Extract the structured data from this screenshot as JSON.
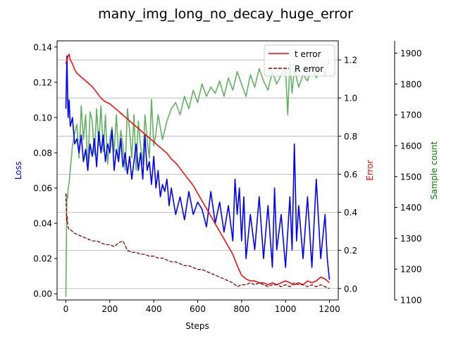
{
  "chart_data": {
    "type": "line",
    "title": "many_img_long_no_decay_huge_error",
    "xlabel": "Steps",
    "xlim": [
      -40,
      1240
    ],
    "xticks": [
      0,
      200,
      400,
      600,
      800,
      1000,
      1200
    ],
    "axes": [
      {
        "id": "loss",
        "ylabel": "Loss",
        "color": "#0000ff",
        "side": "left",
        "ylim": [
          -0.0035,
          0.1435
        ],
        "ticks": [
          0.0,
          0.02,
          0.04,
          0.06,
          0.08,
          0.1,
          0.12,
          0.14
        ]
      },
      {
        "id": "error",
        "ylabel": "Error",
        "color": "#ff0000",
        "side": "right",
        "ylim": [
          -0.06,
          1.3
        ],
        "grid": true,
        "ticks": [
          0.0,
          0.2,
          0.4,
          0.6,
          0.8,
          1.0,
          1.2
        ]
      },
      {
        "id": "samples",
        "ylabel": "Sample count",
        "color": "#008000",
        "side": "right-outer",
        "ylim": [
          1100,
          1940
        ],
        "ticks": [
          1100,
          1200,
          1300,
          1400,
          1500,
          1600,
          1700,
          1800,
          1900
        ]
      }
    ],
    "legend": {
      "placement": "top-right",
      "entries": [
        {
          "name": "t error",
          "color": "#ff0000",
          "style": "solid"
        },
        {
          "name": "R error",
          "color": "#8b0000",
          "style": "dashed"
        }
      ]
    },
    "series": [
      {
        "name": "Loss",
        "axis": "loss",
        "color": "#0000ff",
        "width": 1.6,
        "x": [
          0,
          5,
          10,
          15,
          20,
          30,
          40,
          50,
          60,
          70,
          80,
          90,
          100,
          110,
          120,
          130,
          140,
          150,
          160,
          170,
          180,
          190,
          200,
          210,
          220,
          230,
          240,
          250,
          260,
          270,
          280,
          290,
          300,
          310,
          320,
          330,
          340,
          350,
          360,
          370,
          380,
          390,
          400,
          410,
          420,
          430,
          440,
          450,
          460,
          470,
          480,
          500,
          520,
          540,
          560,
          580,
          600,
          620,
          640,
          660,
          680,
          700,
          720,
          740,
          760,
          770,
          780,
          790,
          800,
          810,
          820,
          840,
          860,
          880,
          900,
          920,
          940,
          950,
          960,
          980,
          1000,
          1020,
          1030,
          1040,
          1045,
          1050,
          1060,
          1080,
          1100,
          1120,
          1140,
          1160,
          1180,
          1190,
          1200
        ],
        "y": [
          0.105,
          0.135,
          0.1,
          0.11,
          0.095,
          0.1,
          0.085,
          0.088,
          0.08,
          0.09,
          0.075,
          0.082,
          0.07,
          0.085,
          0.078,
          0.088,
          0.072,
          0.092,
          0.08,
          0.09,
          0.075,
          0.085,
          0.08,
          0.093,
          0.07,
          0.082,
          0.075,
          0.088,
          0.072,
          0.08,
          0.068,
          0.078,
          0.065,
          0.075,
          0.085,
          0.07,
          0.08,
          0.065,
          0.09,
          0.07,
          0.075,
          0.062,
          0.078,
          0.06,
          0.07,
          0.055,
          0.062,
          0.058,
          0.065,
          0.05,
          0.06,
          0.045,
          0.055,
          0.042,
          0.058,
          0.045,
          0.052,
          0.048,
          0.038,
          0.058,
          0.04,
          0.052,
          0.035,
          0.05,
          0.03,
          0.065,
          0.045,
          0.06,
          0.03,
          0.055,
          0.02,
          0.045,
          0.025,
          0.055,
          0.02,
          0.05,
          0.015,
          0.06,
          0.025,
          0.045,
          0.015,
          0.055,
          0.025,
          0.085,
          0.06,
          0.03,
          0.05,
          0.02,
          0.055,
          0.015,
          0.065,
          0.02,
          0.045,
          0.02,
          0.008
        ]
      },
      {
        "name": "t error",
        "axis": "error",
        "color": "#ff0000",
        "width": 1.5,
        "dash": "",
        "x": [
          0,
          5,
          10,
          15,
          20,
          30,
          40,
          50,
          60,
          80,
          100,
          120,
          140,
          160,
          180,
          200,
          220,
          240,
          260,
          280,
          300,
          320,
          340,
          360,
          380,
          400,
          420,
          440,
          460,
          480,
          500,
          520,
          540,
          560,
          580,
          600,
          620,
          640,
          660,
          680,
          700,
          720,
          740,
          760,
          780,
          800,
          820,
          840,
          860,
          880,
          900,
          920,
          940,
          960,
          980,
          1000,
          1020,
          1040,
          1060,
          1080,
          1100,
          1120,
          1140,
          1160,
          1180,
          1200
        ],
        "y": [
          1.18,
          1.2,
          1.22,
          1.23,
          1.2,
          1.18,
          1.15,
          1.13,
          1.12,
          1.1,
          1.08,
          1.06,
          1.03,
          1.0,
          0.98,
          0.97,
          0.95,
          0.93,
          0.91,
          0.89,
          0.87,
          0.85,
          0.83,
          0.81,
          0.79,
          0.77,
          0.75,
          0.73,
          0.71,
          0.68,
          0.66,
          0.63,
          0.6,
          0.57,
          0.54,
          0.5,
          0.46,
          0.42,
          0.38,
          0.34,
          0.3,
          0.26,
          0.22,
          0.18,
          0.12,
          0.07,
          0.05,
          0.04,
          0.04,
          0.03,
          0.03,
          0.02,
          0.03,
          0.02,
          0.03,
          0.04,
          0.03,
          0.02,
          0.03,
          0.02,
          0.04,
          0.03,
          0.04,
          0.06,
          0.05,
          0.03
        ]
      },
      {
        "name": "R error",
        "axis": "error",
        "color": "#8b0000",
        "width": 1.3,
        "dash": "5,2",
        "x": [
          0,
          2,
          4,
          6,
          8,
          10,
          15,
          20,
          30,
          40,
          60,
          80,
          100,
          120,
          140,
          160,
          180,
          200,
          220,
          240,
          260,
          280,
          300,
          320,
          340,
          360,
          380,
          400,
          420,
          440,
          460,
          480,
          500,
          520,
          540,
          560,
          580,
          600,
          620,
          640,
          660,
          680,
          700,
          720,
          740,
          760,
          780,
          800,
          820,
          840,
          860,
          880,
          900,
          920,
          940,
          960,
          980,
          1000,
          1020,
          1040,
          1060,
          1080,
          1100,
          1120,
          1140,
          1160,
          1180,
          1200
        ],
        "y": [
          0.5,
          0.4,
          0.35,
          0.38,
          0.34,
          0.32,
          0.31,
          0.31,
          0.3,
          0.29,
          0.28,
          0.27,
          0.26,
          0.25,
          0.25,
          0.24,
          0.23,
          0.23,
          0.22,
          0.24,
          0.25,
          0.2,
          0.19,
          0.19,
          0.18,
          0.18,
          0.17,
          0.17,
          0.16,
          0.16,
          0.15,
          0.14,
          0.14,
          0.13,
          0.12,
          0.12,
          0.11,
          0.1,
          0.1,
          0.09,
          0.08,
          0.07,
          0.06,
          0.05,
          0.04,
          0.03,
          0.01,
          0.02,
          0.02,
          0.03,
          0.02,
          0.03,
          0.02,
          0.01,
          0.02,
          0.02,
          0.01,
          0.02,
          0.01,
          0.03,
          0.02,
          0.02,
          0.01,
          0.02,
          0.01,
          0.02,
          0.01,
          0.0
        ]
      },
      {
        "name": "Sample count",
        "axis": "samples",
        "color": "#62b262",
        "width": 1.6,
        "x": [
          0,
          3,
          5,
          8,
          10,
          15,
          20,
          30,
          40,
          50,
          60,
          70,
          80,
          90,
          100,
          110,
          120,
          130,
          140,
          150,
          160,
          170,
          180,
          190,
          200,
          210,
          220,
          230,
          240,
          250,
          260,
          270,
          280,
          290,
          300,
          310,
          320,
          330,
          340,
          350,
          360,
          370,
          380,
          390,
          400,
          410,
          420,
          440,
          460,
          480,
          500,
          520,
          540,
          560,
          580,
          600,
          620,
          640,
          660,
          680,
          700,
          720,
          740,
          760,
          780,
          800,
          820,
          840,
          860,
          880,
          900,
          920,
          940,
          960,
          980,
          1000,
          1010,
          1020,
          1030,
          1040,
          1050,
          1060,
          1080,
          1100,
          1120,
          1140,
          1160,
          1180,
          1200
        ],
        "y": [
          1110,
          1350,
          1440,
          1430,
          1460,
          1480,
          1520,
          1600,
          1640,
          1670,
          1560,
          1730,
          1620,
          1700,
          1520,
          1710,
          1680,
          1570,
          1720,
          1600,
          1730,
          1580,
          1700,
          1540,
          1620,
          1660,
          1580,
          1700,
          1560,
          1650,
          1600,
          1520,
          1720,
          1650,
          1560,
          1700,
          1520,
          1680,
          1600,
          1540,
          1700,
          1620,
          1560,
          1750,
          1600,
          1640,
          1700,
          1620,
          1680,
          1720,
          1740,
          1700,
          1760,
          1720,
          1780,
          1740,
          1800,
          1760,
          1790,
          1770,
          1810,
          1760,
          1820,
          1780,
          1840,
          1800,
          1760,
          1830,
          1790,
          1850,
          1810,
          1780,
          1840,
          1800,
          1830,
          1850,
          1700,
          1870,
          1770,
          1850,
          1820,
          1790,
          1830,
          1810,
          1860,
          1820,
          1850,
          1830,
          1880
        ]
      }
    ]
  }
}
